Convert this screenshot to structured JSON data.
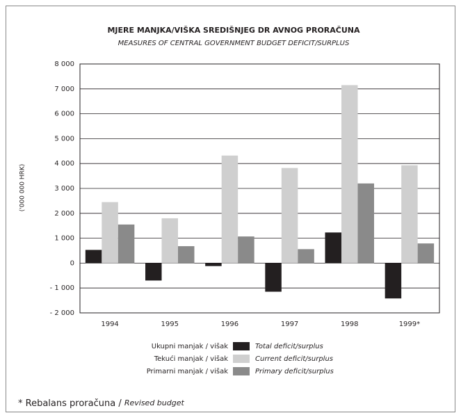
{
  "chart_data": {
    "type": "bar",
    "title": "MJERE MANJKA/VIŠKA SREDIŠNJEG DR  AVNOG PRORAČUNA",
    "subtitle": "MEASURES OF CENTRAL GOVERNMENT BUDGET DEFICIT/SURPLUS",
    "y_label": "('000 000 HRK)",
    "categories": [
      "1994",
      "1995",
      "1996",
      "1997",
      "1998",
      "1999*"
    ],
    "series": [
      {
        "name": "Ukupni manjak / višak",
        "name_en": "Total deficit/surplus",
        "color": "#231f20",
        "values": [
          530,
          -700,
          -120,
          -1150,
          1230,
          -1420
        ]
      },
      {
        "name": "Tekući manjak / višak",
        "name_en": "Current deficit/surplus",
        "color": "#cfcfcf",
        "values": [
          2450,
          1800,
          4320,
          3820,
          7150,
          3930
        ]
      },
      {
        "name": "Primarni manjak / višak",
        "name_en": "Primary deficit/surplus",
        "color": "#8a8a8a",
        "values": [
          1550,
          680,
          1070,
          560,
          3200,
          790
        ]
      }
    ],
    "ylim": [
      -2000,
      8000
    ],
    "yticks": [
      {
        "value": -2000,
        "label": "- 2 000"
      },
      {
        "value": -1000,
        "label": "- 1 000"
      },
      0,
      {
        "value": 1000,
        "label": "1 000"
      },
      {
        "value": 2000,
        "label": "2 000"
      },
      {
        "value": 3000,
        "label": "3 000"
      },
      {
        "value": 4000,
        "label": "4 000"
      },
      {
        "value": 5000,
        "label": "5 000"
      },
      {
        "value": 6000,
        "label": "6 000"
      },
      {
        "value": 7000,
        "label": "7 000"
      },
      {
        "value": 8000,
        "label": "8 000"
      }
    ],
    "grid": true,
    "footnote": "* Rebalans proračuna / ",
    "footnote_en": "Revised budget"
  }
}
